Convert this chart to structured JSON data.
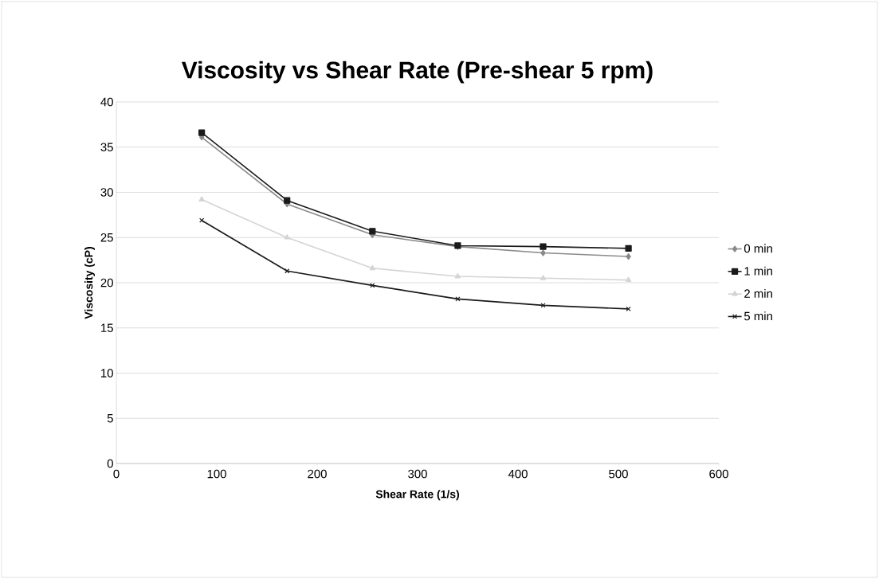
{
  "chart_data": {
    "type": "line",
    "title": "Viscosity vs Shear Rate (Pre-shear 5 rpm)",
    "xlabel": "Shear Rate (1/s)",
    "ylabel": "Viscosity (cP)",
    "x": [
      85,
      170,
      255,
      340,
      425,
      510
    ],
    "series": [
      {
        "name": "0 min",
        "color": "#8a8a8a",
        "marker": "diamond",
        "values": [
          36.1,
          28.7,
          25.3,
          24.0,
          23.3,
          22.9
        ]
      },
      {
        "name": "1 min",
        "color": "#1a1a1a",
        "marker": "square",
        "values": [
          36.6,
          29.1,
          25.7,
          24.1,
          24.0,
          23.8
        ]
      },
      {
        "name": "2 min",
        "color": "#d4d4d4",
        "marker": "triangle",
        "values": [
          29.2,
          25.0,
          21.6,
          20.7,
          20.5,
          20.3
        ]
      },
      {
        "name": "5 min",
        "color": "#1a1a1a",
        "marker": "cross",
        "values": [
          26.9,
          21.3,
          19.7,
          18.2,
          17.5,
          17.1
        ]
      }
    ],
    "xlim": [
      0,
      600
    ],
    "xticks": [
      0,
      100,
      200,
      300,
      400,
      500,
      600
    ],
    "ylim": [
      0,
      40
    ],
    "yticks": [
      0,
      5,
      10,
      15,
      20,
      25,
      30,
      35,
      40
    ],
    "grid": "y",
    "legend": "right"
  }
}
